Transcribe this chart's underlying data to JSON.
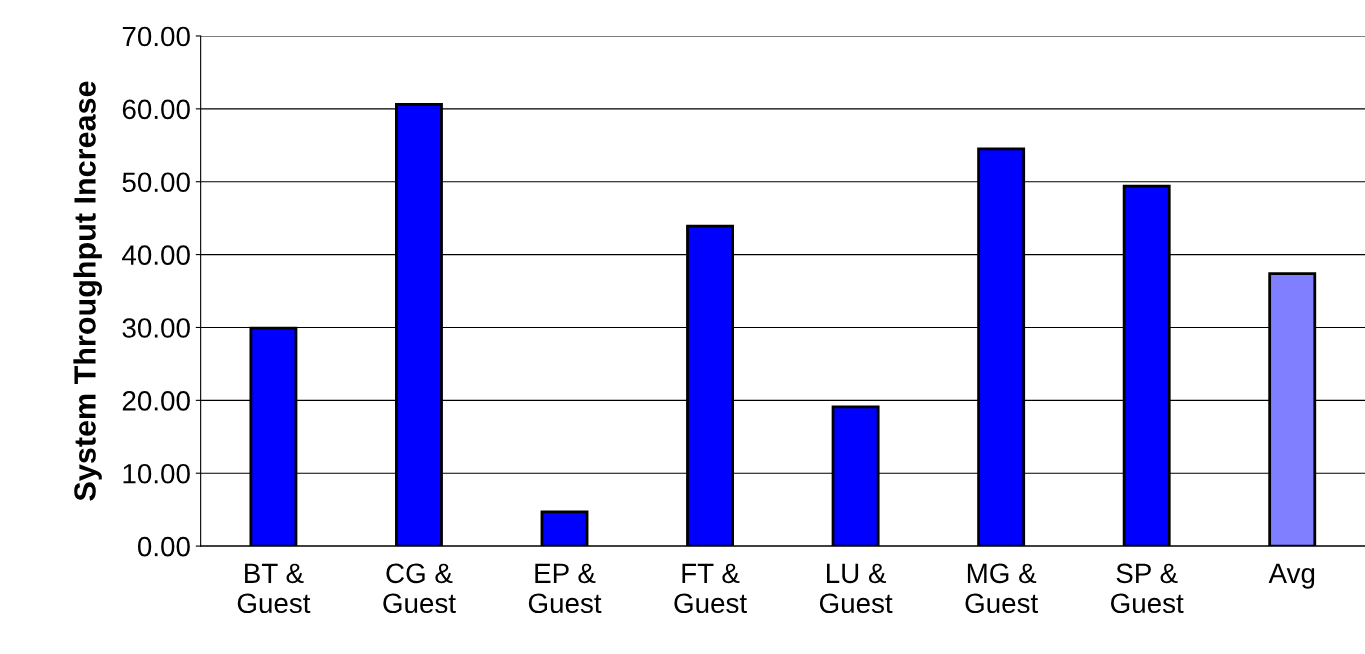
{
  "chart_data": {
    "type": "bar",
    "ylabel": "System Throughput Increase",
    "categories": [
      "BT &\nGuest",
      "CG &\nGuest",
      "EP &\nGuest",
      "FT &\nGuest",
      "LU &\nGuest",
      "MG &\nGuest",
      "SP &\nGuest",
      "Avg"
    ],
    "values": [
      29.9,
      60.6,
      4.7,
      43.9,
      19.1,
      54.5,
      49.4,
      37.4
    ],
    "colors": [
      "#0000ff",
      "#0000ff",
      "#0000ff",
      "#0000ff",
      "#0000ff",
      "#0000ff",
      "#0000ff",
      "#7f7fff"
    ],
    "ylim": [
      0,
      70
    ],
    "yticks": [
      {
        "value": 0,
        "label": "0.00"
      },
      {
        "value": 10,
        "label": "10.00"
      },
      {
        "value": 20,
        "label": "20.00"
      },
      {
        "value": 30,
        "label": "30.00"
      },
      {
        "value": 40,
        "label": "40.00"
      },
      {
        "value": 50,
        "label": "50.00"
      },
      {
        "value": 60,
        "label": "60.00"
      },
      {
        "value": 70,
        "label": "70.00"
      }
    ],
    "grid": "y"
  }
}
